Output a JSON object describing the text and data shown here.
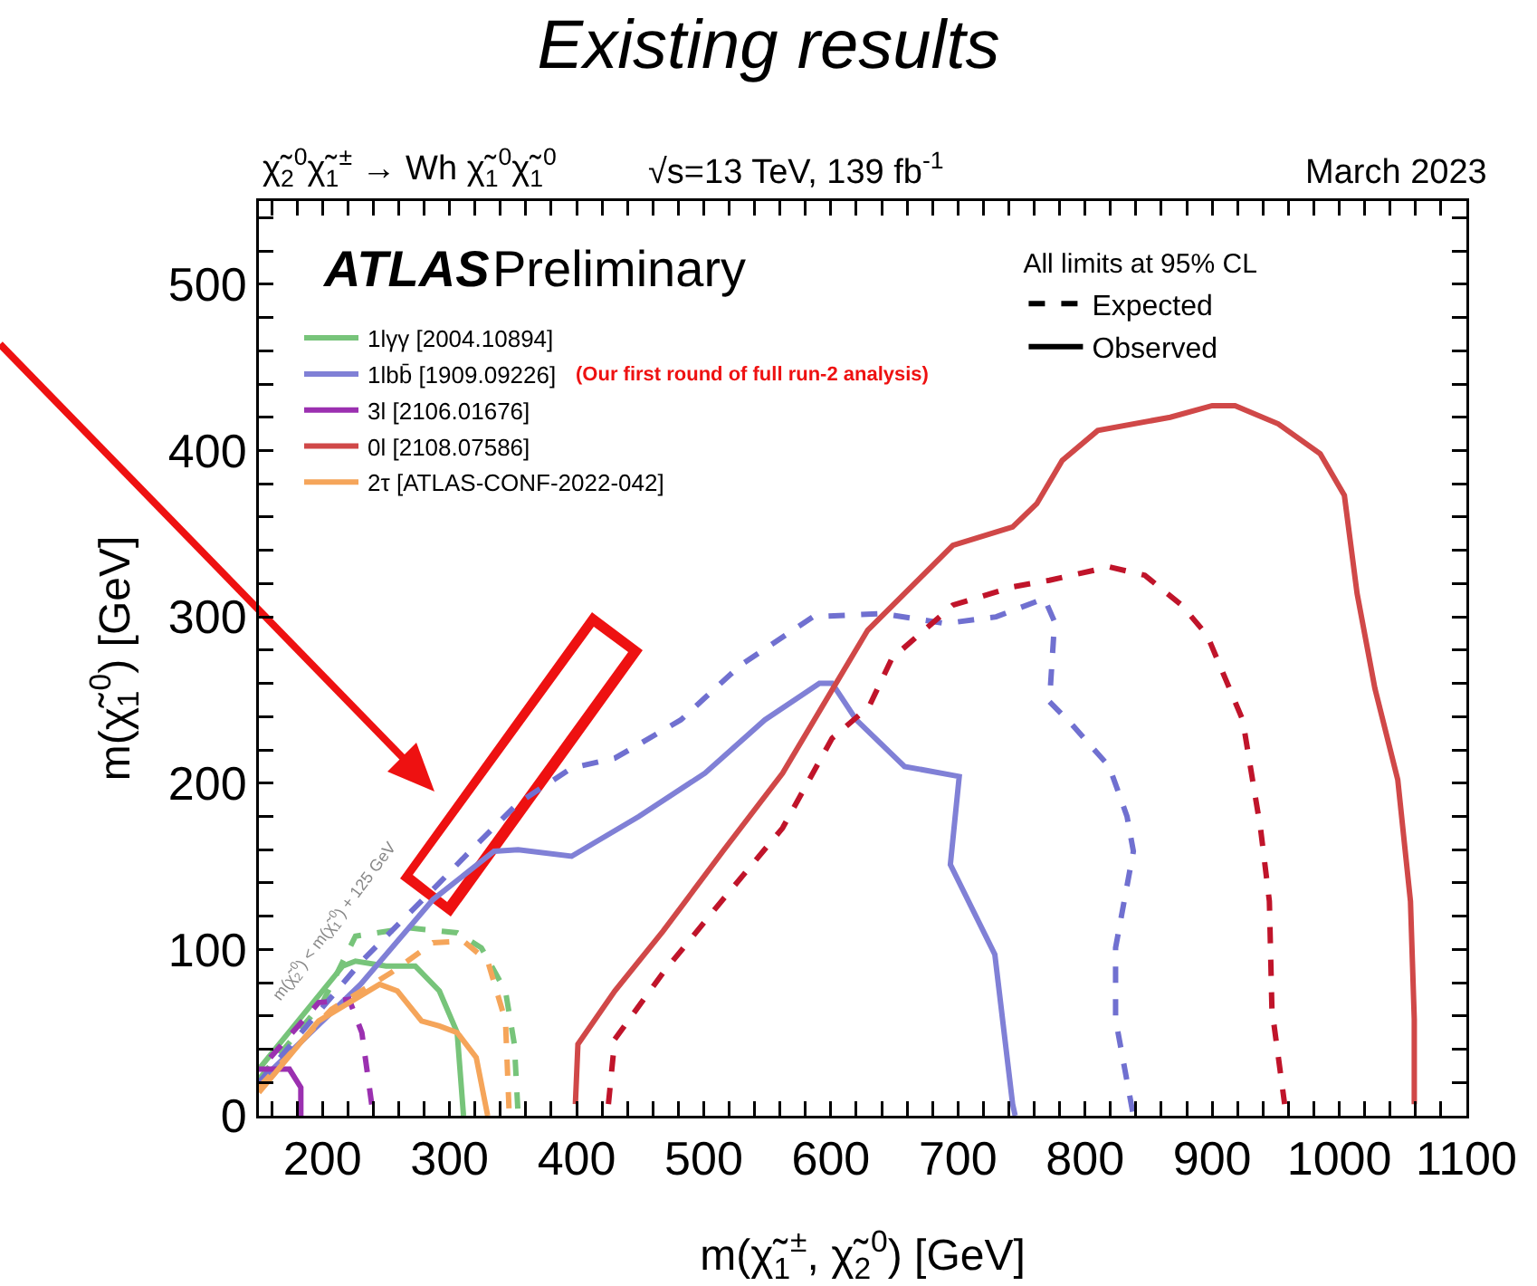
{
  "chart_data": {
    "type": "line",
    "title": "Existing results",
    "xlabel": "m(χ̃$_{1}$$^{±}$, χ̃$_{2}$$^{0}$) [GeV]",
    "ylabel": "m(χ̃$_{1}$$^{0}$) [GeV]",
    "legend_title": "All limits at 95% CL",
    "annotations": [
      "χ̃$_{2}$$^{0}$χ̃$_{1}$$^{±}$ → Wh χ̃$_{1}$$^{0}$χ̃$_{1}$$^{0}$",
      "√s=13 TeV, 139 fb$^{-1}$",
      "March 2023",
      "ATLAS",
      "Preliminary",
      "(Our first round of full run-2 analysis)",
      "m(χ̃$_{2}$$^{0}$) < m(χ̃$_{1}$$^{0}$) + 125 GeV"
    ],
    "xlim": [
      150,
      1100
    ],
    "ylim": [
      0,
      550
    ],
    "xticks": [
      {
        "value": 160,
        "label": null
      },
      {
        "value": 180,
        "label": null
      },
      200,
      {
        "value": 220,
        "label": null
      },
      {
        "value": 240,
        "label": null
      },
      {
        "value": 260,
        "label": null
      },
      {
        "value": 280,
        "label": null
      },
      300,
      {
        "value": 320,
        "label": null
      },
      {
        "value": 340,
        "label": null
      },
      {
        "value": 360,
        "label": null
      },
      {
        "value": 380,
        "label": null
      },
      400,
      {
        "value": 420,
        "label": null
      },
      {
        "value": 440,
        "label": null
      },
      {
        "value": 460,
        "label": null
      },
      {
        "value": 480,
        "label": null
      },
      500,
      {
        "value": 520,
        "label": null
      },
      {
        "value": 540,
        "label": null
      },
      {
        "value": 560,
        "label": null
      },
      {
        "value": 580,
        "label": null
      },
      600,
      {
        "value": 620,
        "label": null
      },
      {
        "value": 640,
        "label": null
      },
      {
        "value": 660,
        "label": null
      },
      {
        "value": 680,
        "label": null
      },
      700,
      {
        "value": 720,
        "label": null
      },
      {
        "value": 740,
        "label": null
      },
      {
        "value": 760,
        "label": null
      },
      {
        "value": 780,
        "label": null
      },
      800,
      {
        "value": 820,
        "label": null
      },
      {
        "value": 840,
        "label": null
      },
      {
        "value": 860,
        "label": null
      },
      {
        "value": 880,
        "label": null
      },
      900,
      {
        "value": 920,
        "label": null
      },
      {
        "value": 940,
        "label": null
      },
      {
        "value": 960,
        "label": null
      },
      {
        "value": 980,
        "label": null
      },
      1000,
      {
        "value": 1020,
        "label": null
      },
      {
        "value": 1040,
        "label": null
      },
      {
        "value": 1060,
        "label": null
      },
      {
        "value": 1080,
        "label": null
      },
      1100
    ],
    "yticks": [
      0,
      {
        "value": 20,
        "label": null
      },
      {
        "value": 40,
        "label": null
      },
      {
        "value": 60,
        "label": null
      },
      {
        "value": 80,
        "label": null
      },
      100,
      {
        "value": 120,
        "label": null
      },
      {
        "value": 140,
        "label": null
      },
      {
        "value": 160,
        "label": null
      },
      {
        "value": 180,
        "label": null
      },
      200,
      {
        "value": 220,
        "label": null
      },
      {
        "value": 240,
        "label": null
      },
      {
        "value": 260,
        "label": null
      },
      {
        "value": 280,
        "label": null
      },
      300,
      {
        "value": 320,
        "label": null
      },
      {
        "value": 340,
        "label": null
      },
      {
        "value": 360,
        "label": null
      },
      {
        "value": 380,
        "label": null
      },
      400,
      {
        "value": 420,
        "label": null
      },
      {
        "value": 440,
        "label": null
      },
      {
        "value": 460,
        "label": null
      },
      {
        "value": 480,
        "label": null
      },
      500,
      {
        "value": 520,
        "label": null
      },
      {
        "value": 540,
        "label": null
      }
    ],
    "grid": false,
    "legend": "top left",
    "series": [
      {
        "name": "1lγγ [2004.10894]",
        "color": "#77c47a",
        "line_style": "solid",
        "x": [
          150,
          216,
          226,
          250,
          273,
          292,
          306,
          311
        ],
        "values": [
          28,
          90,
          93,
          90,
          90,
          75,
          50,
          0
        ]
      },
      {
        "color": "#77c47a",
        "line_style": "dashed",
        "x": [
          150,
          200,
          226,
          268,
          306,
          325,
          344,
          351,
          354
        ],
        "values": [
          22,
          68,
          108,
          113,
          110,
          101,
          75,
          43,
          0
        ]
      },
      {
        "name": "1lbb̄ [1909.09226]",
        "color": "#8080d6",
        "line_style": "solid",
        "x": [
          150,
          230,
          287,
          335,
          354,
          396,
          449,
          501,
          548,
          591,
          601,
          620,
          658,
          701,
          694,
          729,
          743,
          745
        ],
        "values": [
          20,
          79,
          130,
          159,
          160,
          156,
          180,
          206,
          238,
          260,
          260,
          238,
          210,
          204,
          151,
          97,
          7,
          0
        ]
      },
      {
        "color": "#7070d0",
        "line_style": "dashed",
        "x": [
          150,
          231,
          292,
          316,
          354,
          396,
          430,
          482,
          529,
          586,
          640,
          690,
          730,
          768,
          776,
          772,
          790,
          819,
          833,
          838,
          824,
          824,
          838
        ],
        "values": [
          20,
          93,
          140,
          159,
          188,
          209,
          215,
          238,
          271,
          300,
          302,
          296,
          300,
          311,
          297,
          249,
          235,
          210,
          180,
          159,
          101,
          58,
          0
        ]
      },
      {
        "name": "3l [2106.01676]",
        "color": "#9b30b0",
        "line_style": "solid",
        "x": [
          150,
          174,
          183,
          183
        ],
        "values": [
          28,
          28,
          17,
          0
        ]
      },
      {
        "color": "#9b30b0",
        "line_style": "dashed",
        "x": [
          159,
          197,
          221,
          231,
          240
        ],
        "values": [
          35,
          68,
          70,
          50,
          0
        ]
      },
      {
        "name": "0l [2108.07586]",
        "color": "#d04848",
        "line_style": "solid",
        "x": [
          399,
          401,
          430,
          468,
          515,
          562,
          629,
          696,
          743,
          762,
          782,
          810,
          867,
          900,
          918,
          952,
          985,
          1004,
          1014,
          1028,
          1046,
          1056,
          1059,
          1059
        ],
        "values": [
          7,
          43,
          75,
          111,
          159,
          206,
          292,
          343,
          354,
          368,
          394,
          412,
          420,
          427,
          427,
          416,
          398,
          373,
          314,
          257,
          202,
          129,
          58,
          7
        ]
      },
      {
        "color": "#c0142a",
        "line_style": "dashed",
        "x": [
          425,
          430,
          468,
          515,
          562,
          601,
          630,
          648,
          696,
          743,
          772,
          819,
          847,
          876,
          896,
          924,
          938,
          945,
          947,
          957
        ],
        "values": [
          7,
          46,
          86,
          130,
          173,
          227,
          246,
          275,
          307,
          318,
          322,
          330,
          325,
          307,
          289,
          238,
          173,
          129,
          64,
          7
        ]
      },
      {
        "name": "2τ [ATLAS-CONF-2022-042]",
        "color": "#f5a55a",
        "line_style": "solid",
        "x": [
          150,
          197,
          245,
          259,
          278,
          292,
          306,
          321,
          330
        ],
        "values": [
          14,
          57,
          79,
          75,
          57,
          54,
          50,
          35,
          0
        ]
      },
      {
        "color": "#f5a55a",
        "line_style": "dashed",
        "x": [
          150,
          207,
          254,
          287,
          311,
          330,
          344,
          347
        ],
        "values": [
          17,
          64,
          86,
          104,
          105,
          93,
          57,
          0
        ]
      },
      {
        "name": "Expected",
        "color": "#000000",
        "line_style": "dashed",
        "values": [
          null
        ]
      },
      {
        "name": "Observed",
        "color": "#000000",
        "line_style": "solid",
        "values": [
          null
        ]
      }
    ]
  }
}
